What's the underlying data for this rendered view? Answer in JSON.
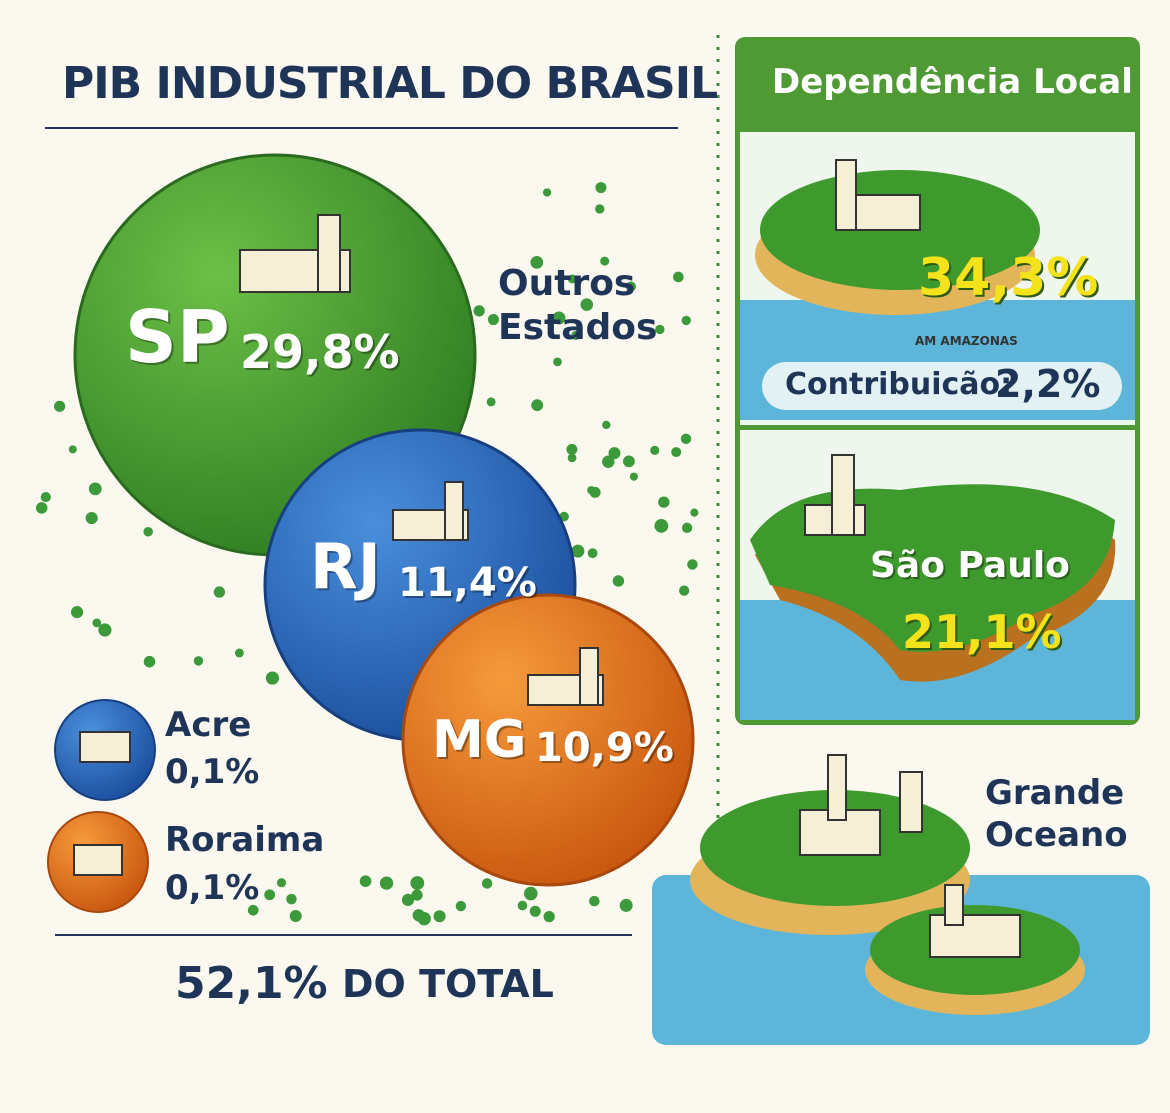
{
  "header": {
    "title": "PIB INDUSTRIAL DO BRASIL"
  },
  "bubbles": [
    {
      "state": "SP",
      "share": "29,8%"
    },
    {
      "state": "RJ",
      "share": "11,4%"
    },
    {
      "state": "MG",
      "share": "10,9%"
    }
  ],
  "others_label": "Outros Estados",
  "small_states": [
    {
      "name": "Acre",
      "share": "0,1%"
    },
    {
      "name": "Roraima",
      "share": "0,1%"
    }
  ],
  "total": {
    "share": "52,1%",
    "label": "DO TOTAL"
  },
  "panel": {
    "title": "Dependência Local",
    "cards": [
      {
        "share": "34,3%",
        "place": "AM AMAZONAS",
        "contribution_label": "Contribuicão:",
        "contribution": "2,2%"
      },
      {
        "place": "São Paulo",
        "share": "21,1%"
      }
    ]
  },
  "ocean_label": "Grande Oceano"
}
